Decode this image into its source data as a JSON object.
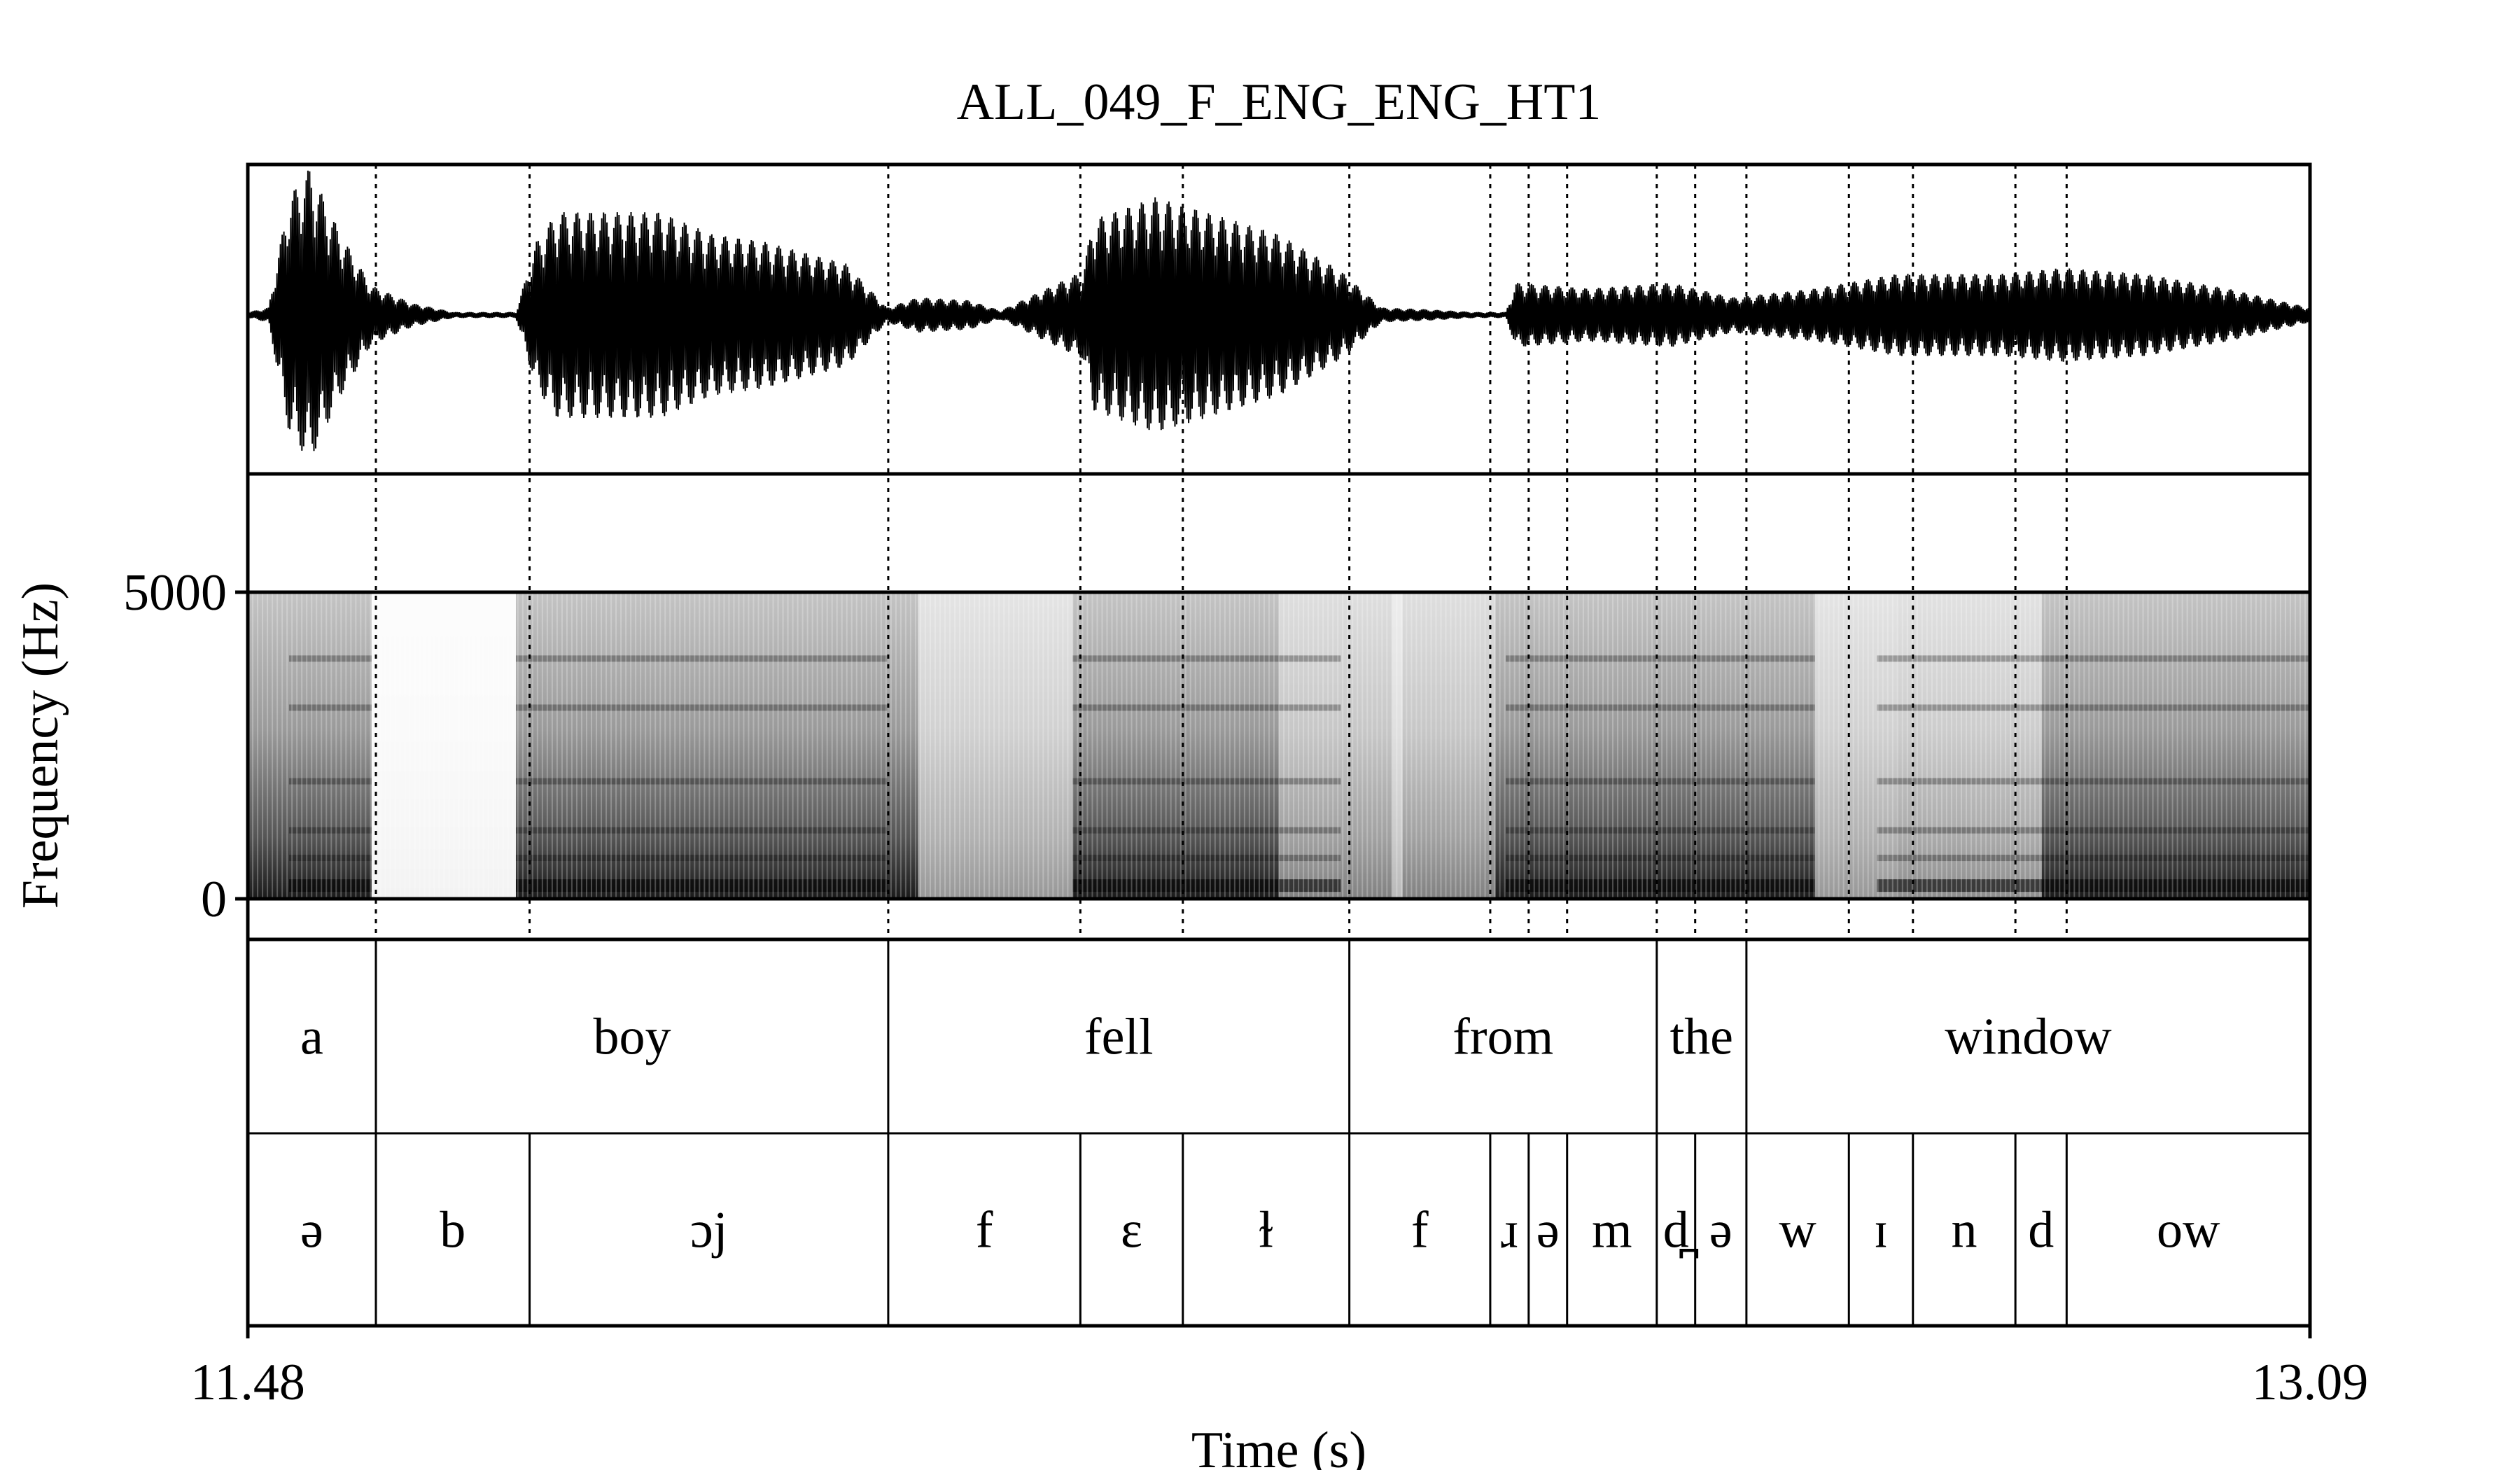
{
  "chart_data": {
    "type": "spectrogram",
    "title": "ALL_049_F_ENG_ENG_HT1",
    "xlabel": "Time (s)",
    "ylabel": "Frequency (Hz)",
    "xlim": [
      11.48,
      13.09
    ],
    "x_tick_labels": [
      "11.48",
      "13.09"
    ],
    "ylim": [
      0,
      5000
    ],
    "y_tick_labels": [
      "5000",
      "0"
    ],
    "panels": [
      "waveform",
      "spectrogram",
      "word tier",
      "phone tier"
    ],
    "word_tier": [
      {
        "label": "a",
        "start": 11.48,
        "end": 11.58
      },
      {
        "label": "boy",
        "start": 11.58,
        "end": 11.98
      },
      {
        "label": "fell",
        "start": 11.98,
        "end": 12.34
      },
      {
        "label": "from",
        "start": 12.34,
        "end": 12.58
      },
      {
        "label": "the",
        "start": 12.58,
        "end": 12.65
      },
      {
        "label": "window",
        "start": 12.65,
        "end": 13.09
      }
    ],
    "phone_tier": [
      {
        "label": "ə",
        "start": 11.48,
        "end": 11.58
      },
      {
        "label": "b",
        "start": 11.58,
        "end": 11.7
      },
      {
        "label": "ɔj",
        "start": 11.7,
        "end": 11.98
      },
      {
        "label": "f",
        "start": 11.98,
        "end": 12.13
      },
      {
        "label": "ɛ",
        "start": 12.13,
        "end": 12.21
      },
      {
        "label": "ɫ",
        "start": 12.21,
        "end": 12.34
      },
      {
        "label": "f",
        "start": 12.34,
        "end": 12.45
      },
      {
        "label": "ɹ",
        "start": 12.45,
        "end": 12.48
      },
      {
        "label": "ə",
        "start": 12.48,
        "end": 12.51
      },
      {
        "label": "m",
        "start": 12.51,
        "end": 12.58
      },
      {
        "label": "d̪",
        "start": 12.58,
        "end": 12.61
      },
      {
        "label": "ə",
        "start": 12.61,
        "end": 12.65
      },
      {
        "label": "w",
        "start": 12.65,
        "end": 12.73
      },
      {
        "label": "ɪ",
        "start": 12.73,
        "end": 12.78
      },
      {
        "label": "n",
        "start": 12.78,
        "end": 12.86
      },
      {
        "label": "d",
        "start": 12.86,
        "end": 12.9
      },
      {
        "label": "ow",
        "start": 12.9,
        "end": 13.09
      }
    ]
  }
}
